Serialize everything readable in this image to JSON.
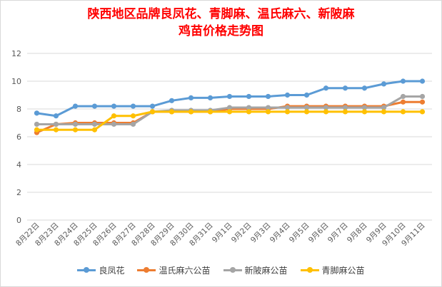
{
  "chart_data": {
    "type": "line",
    "title_line1": "陕西地区品牌良凤花、青脚麻、温氏麻六、新陂麻",
    "title_line2": "鸡苗价格走势图",
    "categories": [
      "8月22日",
      "8月23日",
      "8月24日",
      "8月25日",
      "8月26日",
      "8月27日",
      "8月28日",
      "8月29日",
      "8月30日",
      "8月31日",
      "9月1日",
      "9月2日",
      "9月3日",
      "9月4日",
      "9月5日",
      "9月6日",
      "9月7日",
      "9月8日",
      "9月9日",
      "9月10日",
      "9月11日"
    ],
    "ylim": [
      0,
      12
    ],
    "yticks": [
      "0",
      "2",
      "4",
      "6",
      "8",
      "10",
      "12"
    ],
    "grid": true,
    "legend_position": "bottom",
    "series": [
      {
        "name": "良凤花",
        "color": "#5b9bd5",
        "values": [
          7.7,
          7.5,
          8.2,
          8.2,
          8.2,
          8.2,
          8.2,
          8.6,
          8.8,
          8.8,
          8.9,
          8.9,
          8.9,
          9.0,
          9.0,
          9.5,
          9.5,
          9.5,
          9.8,
          10.0,
          10.0
        ]
      },
      {
        "name": "温氏麻六公苗",
        "color": "#ed7d31",
        "values": [
          6.3,
          6.9,
          7.0,
          7.0,
          7.0,
          7.0,
          7.8,
          7.8,
          7.8,
          7.8,
          8.0,
          8.0,
          8.0,
          8.2,
          8.2,
          8.2,
          8.2,
          8.2,
          8.2,
          8.5,
          8.5
        ]
      },
      {
        "name": "新陂麻公苗",
        "color": "#a5a5a5",
        "values": [
          6.9,
          6.9,
          6.9,
          6.9,
          6.9,
          6.9,
          7.8,
          7.9,
          7.9,
          7.9,
          8.1,
          8.1,
          8.1,
          8.1,
          8.1,
          8.1,
          8.1,
          8.1,
          8.1,
          8.9,
          8.9
        ]
      },
      {
        "name": "青脚麻公苗",
        "color": "#ffc000",
        "values": [
          6.5,
          6.5,
          6.5,
          6.5,
          7.5,
          7.5,
          7.8,
          7.8,
          7.8,
          7.8,
          7.8,
          7.8,
          7.8,
          7.8,
          7.8,
          7.8,
          7.8,
          7.8,
          7.8,
          7.8,
          7.8
        ]
      }
    ]
  }
}
